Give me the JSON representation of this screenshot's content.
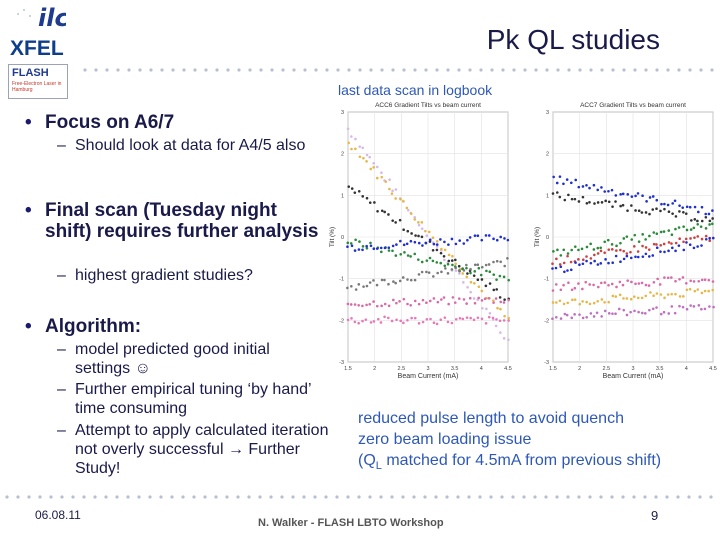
{
  "header": {
    "title": "Pk QL studies",
    "logos": {
      "ilc": "ilc",
      "xfel": "XFEL",
      "flash": "FLASH",
      "flash_sub": "Free-Electron Laser in Hamburg"
    }
  },
  "caption_top": "last data scan in logbook",
  "bullets": [
    {
      "text": "Focus on A6/7",
      "subs": [
        "Should look at data for A4/5 also"
      ]
    },
    {
      "text": "Final scan (Tuesday night shift) requires further analysis",
      "subs": [
        "highest gradient studies?"
      ]
    },
    {
      "text": "Algorithm:",
      "subs": [
        "model predicted good initial settings ☺",
        "Further empirical tuning ‘by hand’ time consuming",
        "Attempt to apply calculated iteration not overly successful → Further Study!"
      ]
    }
  ],
  "caption_bottom": [
    "reduced pulse length to avoid quench",
    "zero beam loading issue",
    "(Q",
    "L",
    " matched for 4.5mA from previous shift)"
  ],
  "footer": {
    "date": "06.08.11",
    "center": "N. Walker - FLASH LBTO Workshop",
    "page": "9"
  },
  "chart_data": [
    {
      "type": "scatter",
      "title": "ACC6 Gradient Tilts vs beam current",
      "xlabel": "Beam Current (mA)",
      "ylabel": "Tilt (%)",
      "xlim": [
        1.5,
        4.5
      ],
      "ylim": [
        -3,
        3
      ],
      "x_ticks": [
        "1.5",
        "2",
        "2.5",
        "3",
        "3.5",
        "4",
        "4.5"
      ],
      "y_ticks": [
        "3",
        "2",
        "1",
        "0",
        "-1",
        "-2",
        "-3"
      ],
      "grid": true,
      "series": [
        {
          "color": "#d8b8e8",
          "values": [
            [
              1.5,
              2.6
            ],
            [
              4.5,
              -2.5
            ]
          ]
        },
        {
          "color": "#e6b84a",
          "values": [
            [
              1.5,
              2.3
            ],
            [
              4.5,
              -2.0
            ]
          ]
        },
        {
          "color": "#333333",
          "values": [
            [
              1.5,
              1.2
            ],
            [
              4.5,
              -1.5
            ]
          ]
        },
        {
          "color": "#2a8a3a",
          "values": [
            [
              1.5,
              -0.1
            ],
            [
              4.5,
              -1.0
            ]
          ]
        },
        {
          "color": "#1f2fd0",
          "values": [
            [
              1.5,
              -0.25
            ],
            [
              4.5,
              0.0
            ]
          ]
        },
        {
          "color": "#7a7a7a",
          "values": [
            [
              1.5,
              -1.2
            ],
            [
              4.5,
              -0.6
            ]
          ]
        },
        {
          "color": "#d86aa8",
          "values": [
            [
              1.5,
              -1.6
            ],
            [
              4.5,
              -1.5
            ]
          ]
        },
        {
          "color": "#e67ab8",
          "values": [
            [
              1.5,
              -2.0
            ],
            [
              4.5,
              -2.0
            ]
          ]
        }
      ]
    },
    {
      "type": "scatter",
      "title": "ACC7 Gradient Tilts vs beam current",
      "xlabel": "Beam Current (mA)",
      "ylabel": "Tilt (%)",
      "xlim": [
        1.5,
        4.5
      ],
      "ylim": [
        -3,
        3
      ],
      "x_ticks": [
        "1.5",
        "2",
        "2.5",
        "3",
        "3.5",
        "4",
        "4.5"
      ],
      "y_ticks": [
        "3",
        "2",
        "1",
        "0",
        "-1",
        "-2",
        "-3"
      ],
      "grid": true,
      "series": [
        {
          "color": "#1f2fd0",
          "values": [
            [
              1.5,
              1.4
            ],
            [
              4.5,
              0.6
            ]
          ]
        },
        {
          "color": "#333333",
          "values": [
            [
              1.5,
              1.0
            ],
            [
              4.5,
              0.4
            ]
          ]
        },
        {
          "color": "#2a8a3a",
          "values": [
            [
              1.5,
              -0.4
            ],
            [
              4.5,
              0.3
            ]
          ]
        },
        {
          "color": "#d04040",
          "values": [
            [
              1.5,
              -0.6
            ],
            [
              4.5,
              0.0
            ]
          ]
        },
        {
          "color": "#1f2fd0",
          "values": [
            [
              1.5,
              -0.8
            ],
            [
              4.5,
              -0.1
            ]
          ]
        },
        {
          "color": "#d86aa8",
          "values": [
            [
              1.5,
              -1.2
            ],
            [
              4.5,
              -1.0
            ]
          ]
        },
        {
          "color": "#e6b84a",
          "values": [
            [
              1.5,
              -1.6
            ],
            [
              4.5,
              -1.3
            ]
          ]
        },
        {
          "color": "#c070c0",
          "values": [
            [
              1.5,
              -1.9
            ],
            [
              4.5,
              -1.7
            ]
          ]
        }
      ]
    }
  ]
}
